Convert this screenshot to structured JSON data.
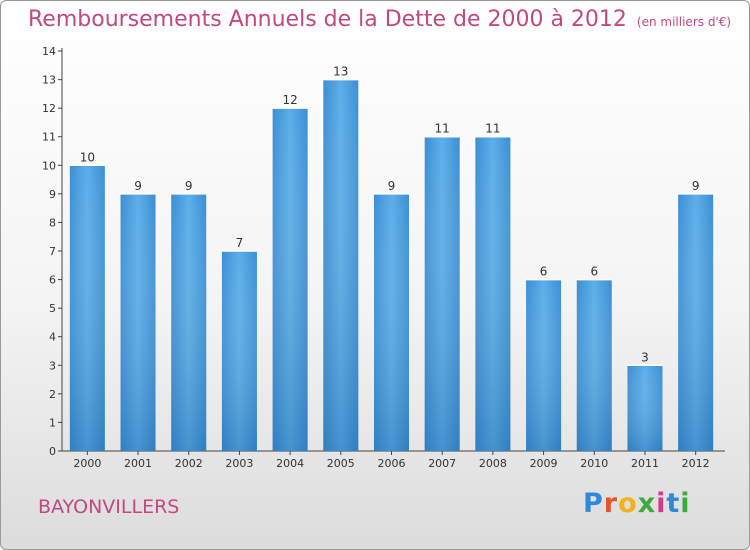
{
  "title": "Remboursements Annuels de la Dette de 2000 à 2012",
  "subtitle": "(en milliers d'€)",
  "commune": "BAYONVILLERS",
  "logo": [
    "P",
    "r",
    "o",
    "x",
    "i",
    "t",
    "i"
  ],
  "colors": {
    "bar": "#3b96dc",
    "title": "#c2487f",
    "axis": "#333333"
  },
  "chart_data": {
    "type": "bar",
    "categories": [
      "2000",
      "2001",
      "2002",
      "2003",
      "2004",
      "2005",
      "2006",
      "2007",
      "2008",
      "2009",
      "2010",
      "2011",
      "2012"
    ],
    "values": [
      10,
      9,
      9,
      7,
      12,
      13,
      9,
      11,
      11,
      6,
      6,
      3,
      9
    ],
    "ylim": [
      0,
      14
    ],
    "yticks": [
      0,
      1,
      2,
      3,
      4,
      5,
      6,
      7,
      8,
      9,
      10,
      11,
      12,
      13,
      14
    ],
    "grid": false
  }
}
